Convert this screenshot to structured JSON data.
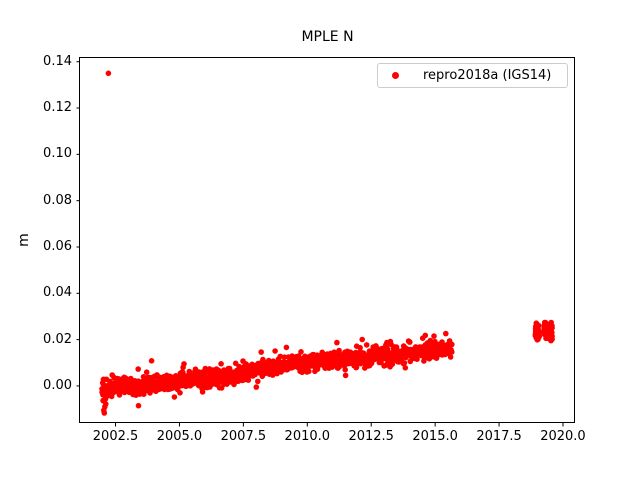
{
  "chart_data": {
    "type": "scatter",
    "title": "MPLE N",
    "xlabel": "",
    "ylabel": "m",
    "grid": false,
    "background": "#ffffff",
    "axis_color": "#000000",
    "legend": {
      "label": "repro2018a (IGS14)",
      "marker_color": "#ff0000",
      "position": "upper right"
    },
    "xlim": [
      2001.11,
      2020.47
    ],
    "ylim": [
      -0.016,
      0.1416
    ],
    "xticks": {
      "values": [
        2002.5,
        2005.0,
        2007.5,
        2010.0,
        2012.5,
        2015.0,
        2017.5,
        2020.0
      ],
      "labels": [
        "2002.5",
        "2005.0",
        "2007.5",
        "2010.0",
        "2012.5",
        "2015.0",
        "2017.5",
        "2020.0"
      ]
    },
    "yticks": {
      "values": [
        0.0,
        0.02,
        0.04,
        0.06,
        0.08,
        0.1,
        0.12,
        0.14
      ],
      "labels": [
        "0.00",
        "0.02",
        "0.04",
        "0.06",
        "0.08",
        "0.10",
        "0.12",
        "0.14"
      ]
    },
    "series": [
      {
        "name": "repro2018a (IGS14)",
        "color": "#ff0000",
        "marker": "dot",
        "marker_radius_px": 2.8,
        "main_band": {
          "x_start": 2001.97,
          "x_end": 2015.66,
          "n_points": 1400,
          "trend": [
            [
              2001.97,
              -0.0008
            ],
            [
              2003.0,
              0.0002
            ],
            [
              2004.0,
              0.0008
            ],
            [
              2005.0,
              0.002
            ],
            [
              2006.0,
              0.003
            ],
            [
              2007.0,
              0.0042
            ],
            [
              2008.0,
              0.0072
            ],
            [
              2009.0,
              0.009
            ],
            [
              2010.0,
              0.0102
            ],
            [
              2011.0,
              0.0112
            ],
            [
              2012.5,
              0.0125
            ],
            [
              2013.5,
              0.0132
            ],
            [
              2014.5,
              0.015
            ],
            [
              2015.66,
              0.017
            ]
          ],
          "noise_sigma_core": 0.0017,
          "noise_sigma_tail": 0.0035,
          "tail_fraction": 0.15
        },
        "late_clusters": [
          {
            "x_start": 2018.92,
            "x_end": 2019.08,
            "mean": 0.0232,
            "sigma": 0.0015,
            "n_points": 55,
            "clamp": [
              0.0188,
              0.0274
            ]
          },
          {
            "x_start": 2019.26,
            "x_end": 2019.58,
            "mean": 0.0236,
            "sigma": 0.0016,
            "n_points": 95,
            "clamp": [
              0.0188,
              0.0274
            ]
          }
        ],
        "outliers": [
          [
            2002.22,
            0.135
          ],
          [
            2002.02,
            -0.0063
          ],
          [
            2002.04,
            -0.0105
          ],
          [
            2002.06,
            -0.0117
          ],
          [
            2002.08,
            -0.009
          ],
          [
            2002.12,
            -0.0078
          ],
          [
            2002.35,
            -0.0045
          ],
          [
            2003.3,
            -0.004
          ],
          [
            2003.45,
            -0.0035
          ]
        ],
        "gap": {
          "x_start": 2015.7,
          "x_end": 2018.9
        }
      }
    ]
  }
}
